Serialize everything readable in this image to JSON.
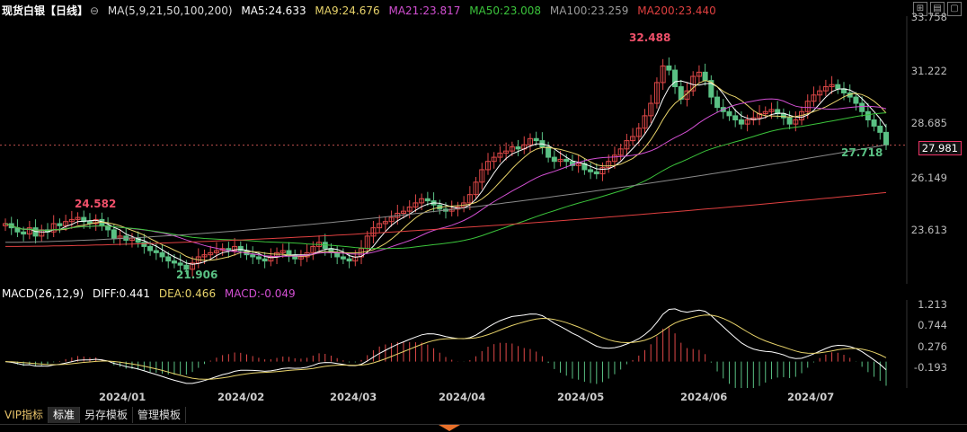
{
  "legend": {
    "title": "现货白银【日线】",
    "symbol_glyph": "⊖",
    "params": "MA(5,9,21,50,100,200)",
    "ma5": "MA5:24.633",
    "ma9": "MA9:24.676",
    "ma21": "MA21:23.817",
    "ma50": "MA50:23.008",
    "ma100": "MA100:23.259",
    "ma200": "MA200:23.440"
  },
  "macd_legend": {
    "name": "MACD(26,12,9)",
    "diff": "DIFF:0.441",
    "dea": "DEA:0.466",
    "macd": "MACD:-0.049"
  },
  "price_axis": [
    "33.758",
    "31.222",
    "28.685",
    "26.149",
    "23.613"
  ],
  "macd_axis": [
    "1.213",
    "0.744",
    "0.276",
    "-0.193"
  ],
  "current_price": "27.981",
  "annotations": {
    "high": "32.488",
    "low": "21.906",
    "early_high": "24.582",
    "recent_low": "27.718"
  },
  "dates": [
    "2024/01",
    "2024/02",
    "2024/03",
    "2024/04",
    "2024/05",
    "2024/06",
    "2024/07"
  ],
  "tabs": [
    "VIP指标",
    "标准",
    "另存模板",
    "管理模板"
  ],
  "colors": {
    "up": "#e04848",
    "down": "#5ac184",
    "ma5": "#ffffff",
    "ma9": "#e8d36a",
    "ma21": "#d24fd2",
    "ma50": "#3bc43b",
    "ma100": "#8a8a8a",
    "ma200": "#e04040"
  },
  "chart_data": {
    "type": "candlestick",
    "price_ylim": [
      21.3,
      34.2
    ],
    "closes": [
      24.2,
      24.0,
      23.8,
      23.7,
      24.0,
      23.6,
      23.9,
      23.8,
      24.2,
      24.1,
      24.3,
      24.4,
      24.5,
      24.3,
      24.2,
      24.4,
      24.1,
      23.9,
      23.5,
      23.6,
      23.4,
      23.5,
      23.3,
      23.1,
      22.9,
      22.8,
      22.6,
      22.4,
      22.3,
      22.2,
      22.0,
      22.3,
      22.6,
      22.7,
      22.8,
      22.9,
      23.0,
      22.9,
      23.1,
      22.9,
      22.7,
      22.6,
      22.5,
      22.4,
      22.6,
      22.8,
      22.9,
      22.7,
      22.5,
      22.6,
      22.8,
      23.1,
      23.3,
      23.0,
      22.8,
      22.6,
      22.5,
      22.4,
      22.6,
      23.0,
      23.6,
      24.0,
      24.2,
      24.3,
      24.5,
      24.7,
      24.8,
      25.0,
      25.2,
      25.4,
      25.3,
      25.1,
      24.9,
      24.8,
      24.9,
      25.0,
      25.2,
      25.6,
      26.2,
      26.8,
      27.2,
      27.4,
      27.6,
      27.7,
      27.9,
      27.8,
      28.0,
      28.3,
      28.2,
      27.9,
      27.4,
      27.2,
      27.3,
      27.2,
      27.0,
      27.1,
      26.8,
      26.7,
      26.6,
      26.9,
      27.2,
      27.5,
      27.8,
      28.2,
      28.4,
      28.8,
      29.4,
      30.0,
      31.0,
      31.8,
      31.6,
      30.8,
      30.2,
      30.6,
      31.3,
      31.5,
      31.1,
      30.3,
      29.8,
      29.6,
      29.4,
      29.2,
      29.0,
      29.2,
      29.3,
      29.5,
      29.6,
      29.7,
      29.5,
      29.3,
      29.0,
      29.2,
      29.6,
      30.1,
      30.4,
      30.6,
      30.8,
      30.9,
      30.7,
      30.5,
      30.3,
      30.0,
      29.6,
      29.2,
      28.9,
      28.6,
      28.0
    ]
  }
}
